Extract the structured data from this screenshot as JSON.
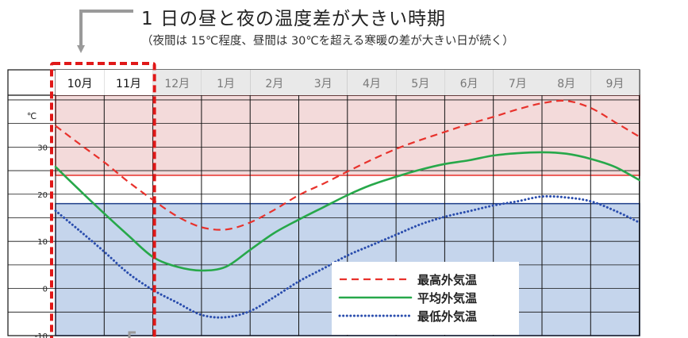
{
  "header": {
    "title": "1 日の昼と夜の温度差が大きい時期",
    "subtitle": "（夜間は 15℃程度、昼間は 30℃を超える寒暖の差が大きい日が続く）"
  },
  "colors": {
    "max_series": "#e8322c",
    "avg_series": "#27a84a",
    "min_series": "#2a4dad",
    "hot_band": "#f3dada",
    "cold_band": "#c5d5ec",
    "highlight": "#e01818",
    "pointer": "#9a9a9a"
  },
  "chart_data": {
    "type": "line",
    "title": "1 日の昼と夜の温度差が大きい時期",
    "ylabel": "℃",
    "ylim": [
      -10,
      41
    ],
    "yticks": [
      -10,
      0,
      10,
      20,
      30
    ],
    "categories": [
      "10月",
      "11月",
      "12月",
      "1月",
      "2月",
      "3月",
      "4月",
      "5月",
      "6月",
      "7月",
      "8月",
      "9月"
    ],
    "highlighted_categories": [
      "10月",
      "11月"
    ],
    "bands": [
      {
        "from": 24,
        "to": 41,
        "color": "hot"
      },
      {
        "from": -10,
        "to": 18,
        "color": "cold"
      }
    ],
    "series": [
      {
        "name": "最高外気温",
        "style": "dashed",
        "x": [
          0,
          0.5,
          1,
          1.5,
          2,
          2.5,
          3,
          3.5,
          4,
          4.5,
          5,
          5.5,
          6,
          6.5,
          7,
          7.5,
          8,
          8.5,
          9,
          9.5,
          10,
          10.5,
          11,
          11.5,
          12
        ],
        "values": [
          34.5,
          30.6,
          26.8,
          22.6,
          18.8,
          15.3,
          13,
          12.5,
          14,
          16.7,
          19.8,
          22.2,
          24.8,
          27.3,
          29.6,
          31.5,
          33.2,
          34.9,
          36.4,
          38,
          39.3,
          39.8,
          38.3,
          35.3,
          32.2
        ]
      },
      {
        "name": "平均外気温",
        "style": "solid",
        "x": [
          0,
          0.5,
          1,
          1.5,
          2,
          2.5,
          3,
          3.5,
          4,
          4.5,
          5,
          5.5,
          6,
          6.5,
          7,
          7.5,
          8,
          8.5,
          9,
          9.5,
          10,
          10.5,
          11,
          11.5,
          12
        ],
        "values": [
          25.8,
          20.8,
          15.9,
          11.2,
          6.7,
          4.6,
          3.8,
          4.6,
          8.2,
          11.8,
          14.6,
          17.2,
          19.8,
          22,
          23.7,
          25.2,
          26.4,
          27.2,
          28.2,
          28.7,
          28.9,
          28.6,
          27.5,
          25.8,
          23
        ]
      },
      {
        "name": "最低外気温",
        "style": "dotted",
        "x": [
          0,
          0.5,
          1,
          1.5,
          2,
          2.5,
          3,
          3.5,
          4,
          4.5,
          5,
          5.5,
          6,
          6.5,
          7,
          7.5,
          8,
          8.5,
          9,
          9.5,
          10,
          10.5,
          11,
          11.5,
          12
        ],
        "values": [
          16.5,
          12.2,
          7.8,
          3.2,
          -0.3,
          -3,
          -5.6,
          -6.1,
          -4.8,
          -1.8,
          1.5,
          4.2,
          7,
          9.2,
          11.4,
          13.6,
          15.2,
          16.4,
          17.6,
          18.5,
          19.5,
          19.3,
          18.5,
          16.5,
          14
        ]
      }
    ],
    "legend": {
      "position": "bottom-right"
    },
    "grid": true
  }
}
